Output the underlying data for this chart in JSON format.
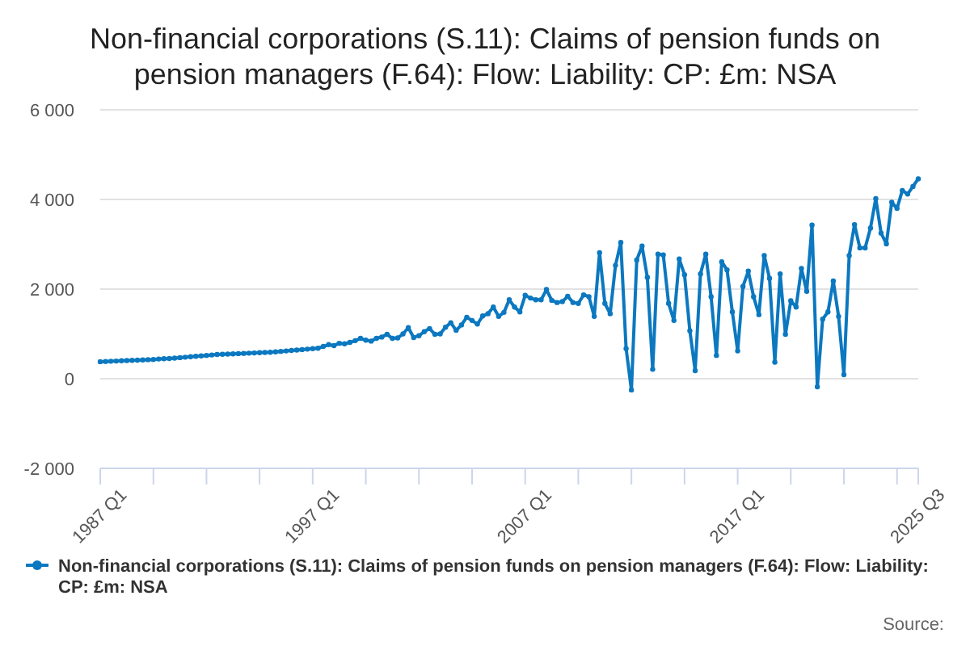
{
  "chart_data": {
    "type": "line",
    "title": "Non-financial corporations (S.11): Claims of pension funds on pension managers (F.64): Flow: Liability: CP: £m: NSA",
    "categories": [
      "1987 Q1",
      null,
      null,
      null,
      null,
      null,
      null,
      null,
      null,
      null,
      null,
      null,
      null,
      null,
      null,
      null,
      null,
      null,
      null,
      null,
      null,
      null,
      null,
      null,
      null,
      null,
      null,
      null,
      null,
      null,
      null,
      null,
      null,
      null,
      null,
      null,
      null,
      null,
      null,
      null,
      "1997 Q1",
      null,
      null,
      null,
      null,
      null,
      null,
      null,
      null,
      null,
      null,
      null,
      null,
      null,
      null,
      null,
      null,
      null,
      null,
      null,
      null,
      null,
      null,
      null,
      null,
      null,
      null,
      null,
      null,
      null,
      null,
      null,
      null,
      null,
      null,
      null,
      null,
      null,
      null,
      null,
      "2007 Q1",
      null,
      null,
      null,
      null,
      null,
      null,
      null,
      null,
      null,
      null,
      null,
      null,
      null,
      null,
      null,
      null,
      null,
      null,
      null,
      null,
      null,
      null,
      null,
      null,
      null,
      null,
      null,
      null,
      null,
      null,
      null,
      null,
      null,
      null,
      null,
      null,
      null,
      null,
      null,
      "2017 Q1",
      null,
      null,
      null,
      null,
      null,
      null,
      null,
      null,
      null,
      null,
      null,
      null,
      null,
      null,
      null,
      null,
      null,
      null,
      null,
      null,
      null,
      null,
      null,
      null,
      null,
      null,
      null,
      null,
      null,
      null,
      null,
      null,
      null,
      "2025 Q3"
    ],
    "series": [
      {
        "name": "Non-financial corporations (S.11): Claims of pension funds on pension managers (F.64): Flow: Liability: CP: £m: NSA",
        "color": "#0b78c0",
        "values": [
          380,
          385,
          390,
          395,
          400,
          405,
          410,
          415,
          420,
          425,
          430,
          440,
          445,
          450,
          460,
          470,
          480,
          490,
          500,
          510,
          520,
          530,
          540,
          545,
          550,
          555,
          560,
          565,
          570,
          575,
          580,
          585,
          590,
          600,
          610,
          620,
          630,
          640,
          650,
          660,
          670,
          680,
          720,
          760,
          740,
          790,
          780,
          810,
          850,
          900,
          860,
          840,
          900,
          930,
          990,
          900,
          910,
          1000,
          1140,
          920,
          960,
          1050,
          1120,
          990,
          1000,
          1150,
          1250,
          1080,
          1200,
          1370,
          1300,
          1220,
          1400,
          1450,
          1600,
          1390,
          1480,
          1760,
          1600,
          1490,
          1860,
          1800,
          1760,
          1760,
          1990,
          1750,
          1700,
          1720,
          1840,
          1700,
          1680,
          1870,
          1830,
          1390,
          2810,
          1680,
          1450,
          2530,
          3040,
          670,
          -250,
          2650,
          2960,
          2260,
          210,
          2780,
          2760,
          1680,
          1300,
          2670,
          2320,
          1070,
          180,
          2340,
          2780,
          1830,
          520,
          2610,
          2430,
          1490,
          620,
          2060,
          2400,
          1830,
          1430,
          2750,
          2240,
          370,
          2340,
          990,
          1740,
          1600,
          2460,
          1950,
          3430,
          -180,
          1330,
          1490,
          2180,
          1390,
          90,
          2750,
          3440,
          2920,
          2920,
          3360,
          4020,
          3250,
          3010,
          3940,
          3800,
          4200,
          4120,
          4290,
          4460
        ]
      }
    ],
    "ylim": [
      -2000,
      6000
    ],
    "yticks": [
      {
        "value": -2000,
        "label": "-2 000"
      },
      {
        "value": 0,
        "label": "0"
      },
      {
        "value": 2000,
        "label": "2 000"
      },
      {
        "value": 4000,
        "label": "4 000"
      },
      {
        "value": 6000,
        "label": "6 000"
      }
    ],
    "grid": "y",
    "legend": "bottom",
    "marker": "circle",
    "line_style": "solid",
    "annotations": [
      "Source:"
    ]
  }
}
